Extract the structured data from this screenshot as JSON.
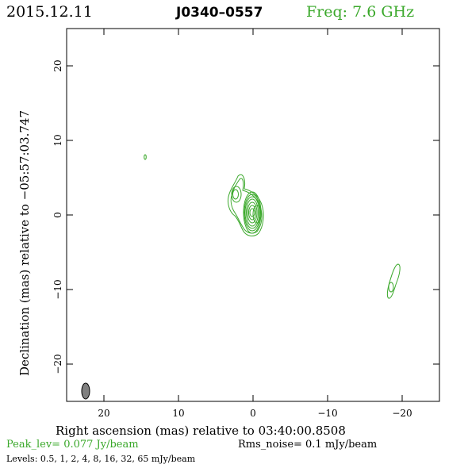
{
  "header": {
    "date": "2015.12.11",
    "source": "J0340–0557",
    "frequency": "Freq: 7.6 GHz"
  },
  "axes": {
    "xlabel": "Right ascension (mas) relative to 03:40:00.8508",
    "ylabel": "Declination (mas) relative to −05:57:03.747",
    "x_ticks": [
      "20",
      "10",
      "0",
      "−10",
      "−20"
    ],
    "y_ticks": [
      "20",
      "10",
      "0",
      "−10",
      "−20"
    ],
    "xlim": [
      25,
      -25
    ],
    "ylim": [
      -25,
      25
    ]
  },
  "footer": {
    "peak": "Peak_lev=  0.077 Jy/beam",
    "rms": "Rms_noise=   0.1 mJy/beam",
    "levels": "Levels: 0.5,    1,    2,    4,    8,   16,   32,   65 mJy/beam"
  },
  "colors": {
    "contour": "#3aa82a",
    "beam": "#808080",
    "frame": "#000000"
  }
}
